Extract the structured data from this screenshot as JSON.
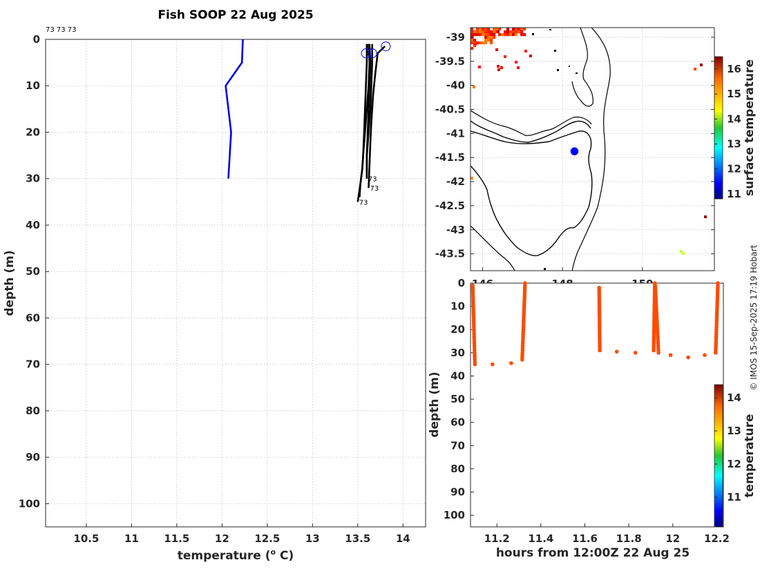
{
  "title": "Fish SOOP 22 Aug 2025",
  "credit": "© IMOS 15-Sep-2025 17:19 Hobart",
  "chart_data": [
    {
      "type": "line",
      "name": "temperature-profile",
      "xlabel": "temperature (",
      "xlabel_sup": "o",
      "xlabel_end": " C)",
      "ylabel": "depth (m)",
      "xlim": [
        10.05,
        14.25
      ],
      "ylim": [
        0,
        105
      ],
      "xticks": [
        10.5,
        11,
        11.5,
        12,
        12.5,
        13,
        13.5,
        14
      ],
      "yticks": [
        0,
        10,
        20,
        30,
        40,
        50,
        60,
        70,
        80,
        90,
        100
      ],
      "top_label": "73 73 73",
      "series": [
        {
          "name": "blue-profile",
          "color": "#0000e6",
          "temperature": [
            12.23,
            12.22,
            12.04,
            12.1,
            12.07
          ],
          "depth": [
            0,
            5,
            10,
            20,
            30
          ]
        },
        {
          "name": "profile-1",
          "color": "#000000",
          "temperature": [
            13.62,
            13.63,
            13.62,
            13.6,
            13.58,
            13.56,
            13.55,
            13.53,
            13.5
          ],
          "depth": [
            1,
            5,
            10,
            15,
            20,
            25,
            28,
            31,
            35
          ],
          "end_label": "73"
        },
        {
          "name": "profile-2",
          "color": "#000000",
          "temperature": [
            13.66,
            13.66,
            13.65,
            13.64,
            13.62,
            13.6,
            13.6
          ],
          "depth": [
            1,
            5,
            10,
            15,
            20,
            25,
            30
          ],
          "end_label": "73"
        },
        {
          "name": "profile-3",
          "color": "#000000",
          "temperature": [
            13.8,
            13.72,
            13.69,
            13.67,
            13.65,
            13.64,
            13.63,
            13.62
          ],
          "depth": [
            1.5,
            3,
            8,
            12,
            18,
            22,
            27,
            32
          ],
          "end_label": "73"
        },
        {
          "name": "profile-4",
          "color": "#000000",
          "temperature": [
            13.6,
            13.6,
            13.59,
            13.58,
            13.57,
            13.56,
            13.55,
            13.53,
            13.52
          ],
          "depth": [
            1,
            5,
            10,
            15,
            20,
            25,
            28,
            31,
            34
          ]
        },
        {
          "name": "profile-5",
          "color": "#000000",
          "temperature": [
            13.63,
            13.64,
            13.63,
            13.62,
            13.61,
            13.6,
            13.6
          ],
          "depth": [
            1,
            5,
            10,
            15,
            20,
            25,
            29
          ]
        }
      ],
      "surface_markers": [
        {
          "temperature": 13.59,
          "depth": 3
        },
        {
          "temperature": 13.66,
          "depth": 3
        },
        {
          "temperature": 13.81,
          "depth": 1.5
        }
      ]
    },
    {
      "type": "heatmap",
      "name": "surface-temperature-map",
      "xlim": [
        145.7,
        151.8
      ],
      "ylim": [
        -43.85,
        -38.8
      ],
      "xticks": [
        146,
        148,
        150
      ],
      "yticks": [
        -39,
        -39.5,
        -40,
        -40.5,
        -41,
        -41.5,
        -42,
        -42.5,
        -43,
        -43.5
      ],
      "colorbar_label": "surface temperature",
      "colorbar_range": [
        10.8,
        16.5
      ],
      "colorbar_ticks": [
        11,
        12,
        13,
        14,
        15,
        16
      ],
      "vessel_position": {
        "lon": 148.3,
        "lat": -41.37
      }
    },
    {
      "type": "scatter",
      "name": "depth-time-section",
      "xlabel": "hours from 12:00Z 22 Aug 25",
      "ylabel": "depth (m)",
      "xlim": [
        11.08,
        12.23
      ],
      "ylim": [
        0,
        105
      ],
      "xticks": [
        11.2,
        11.4,
        11.6,
        11.8,
        12,
        12.2
      ],
      "xtick_labels": [
        "11.2",
        "11.4",
        "11.6",
        "11.8",
        "12",
        "12.2"
      ],
      "yticks": [
        0,
        10,
        20,
        30,
        40,
        50,
        60,
        70,
        80,
        90,
        100
      ],
      "colorbar_label": "temperature",
      "colorbar_range": [
        10.1,
        14.4
      ],
      "colorbar_ticks": [
        11,
        12,
        13,
        14
      ],
      "casts": [
        {
          "hour_start": 11.09,
          "hour_end": 11.1,
          "depth_start": 1,
          "depth_end": 35
        },
        {
          "hour_start": 11.328,
          "hour_end": 11.315,
          "depth_start": 0,
          "depth_end": 33
        },
        {
          "hour_start": 11.665,
          "hour_end": 11.668,
          "depth_start": 2,
          "depth_end": 29
        },
        {
          "hour_start": 11.918,
          "hour_end": 11.913,
          "depth_start": 0,
          "depth_end": 29
        },
        {
          "hour_start": 11.92,
          "hour_end": 11.935,
          "depth_start": 1,
          "depth_end": 30
        },
        {
          "hour_start": 12.205,
          "hour_end": 12.195,
          "depth_start": 0,
          "depth_end": 30
        }
      ],
      "isolated_points": [
        {
          "hour": 11.18,
          "depth": 35
        },
        {
          "hour": 11.265,
          "depth": 34.5
        },
        {
          "hour": 11.745,
          "depth": 29.5
        },
        {
          "hour": 11.83,
          "depth": 30
        },
        {
          "hour": 11.99,
          "depth": 31
        },
        {
          "hour": 12.07,
          "depth": 32
        },
        {
          "hour": 12.145,
          "depth": 31
        }
      ],
      "point_temperature": 13.55
    }
  ]
}
